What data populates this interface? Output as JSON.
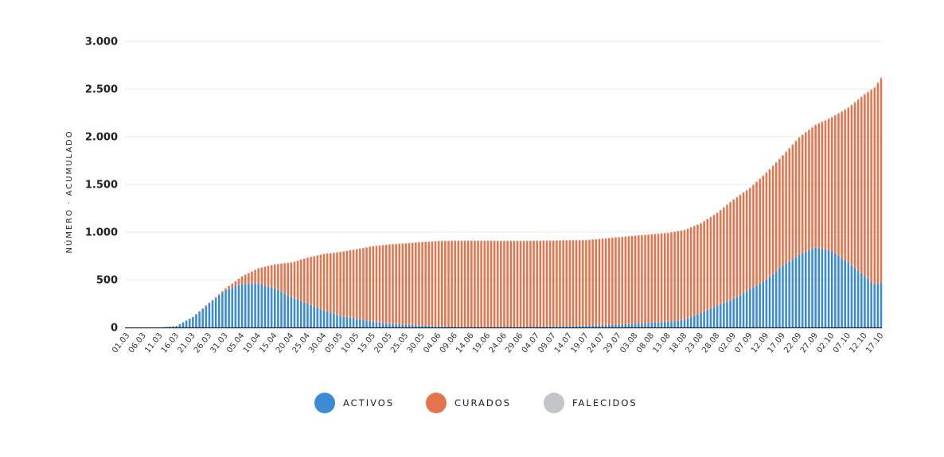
{
  "chart_data": {
    "type": "bar",
    "stacked": true,
    "ylabel": "NÚMERO · ACUMULADO",
    "ylim": [
      0,
      3000
    ],
    "yticks": [
      0,
      500,
      1000,
      1500,
      2000,
      2500,
      3000
    ],
    "ytick_labels": [
      "0",
      "500",
      "1.000",
      "1.500",
      "2.000",
      "2.500",
      "3.000"
    ],
    "grid": "horizontal",
    "x_start": "01.03",
    "x_end": "17.10",
    "xtick_labels": [
      "01.03",
      "06.03",
      "11.03",
      "16.03",
      "21.03",
      "26.03",
      "31.03",
      "05.04",
      "10.04",
      "15.04",
      "20.04",
      "25.04",
      "30.04",
      "05.05",
      "10.05",
      "15.05",
      "20.05",
      "25.05",
      "30.05",
      "04.06",
      "09.06",
      "14.06",
      "19.06",
      "24.06",
      "29.06",
      "04.07",
      "09.07",
      "14.07",
      "19.07",
      "24.07",
      "29.07",
      "03.08",
      "08.08",
      "13.08",
      "18.08",
      "23.08",
      "28.08",
      "02.09",
      "07.09",
      "12.09",
      "17.09",
      "22.09",
      "27.09",
      "02.10",
      "07.10",
      "12.10",
      "17.10"
    ],
    "legend_position": "bottom",
    "series": [
      {
        "name": "ACTIVOS",
        "color": "#3a8bd4",
        "knots": [
          [
            "01.03",
            0
          ],
          [
            "11.03",
            0
          ],
          [
            "16.03",
            15
          ],
          [
            "21.03",
            110
          ],
          [
            "26.03",
            250
          ],
          [
            "31.03",
            390
          ],
          [
            "05.04",
            455
          ],
          [
            "10.04",
            460
          ],
          [
            "15.04",
            410
          ],
          [
            "20.04",
            320
          ],
          [
            "25.04",
            250
          ],
          [
            "30.04",
            180
          ],
          [
            "05.05",
            120
          ],
          [
            "10.05",
            90
          ],
          [
            "15.05",
            60
          ],
          [
            "20.05",
            40
          ],
          [
            "25.05",
            30
          ],
          [
            "30.05",
            20
          ],
          [
            "04.06",
            12
          ],
          [
            "09.06",
            8
          ],
          [
            "14.06",
            5
          ],
          [
            "19.06",
            5
          ],
          [
            "29.06",
            6
          ],
          [
            "09.07",
            10
          ],
          [
            "19.07",
            20
          ],
          [
            "29.07",
            30
          ],
          [
            "03.08",
            40
          ],
          [
            "08.08",
            50
          ],
          [
            "13.08",
            60
          ],
          [
            "18.08",
            80
          ],
          [
            "23.08",
            150
          ],
          [
            "28.08",
            230
          ],
          [
            "02.09",
            300
          ],
          [
            "07.09",
            400
          ],
          [
            "12.09",
            500
          ],
          [
            "17.09",
            650
          ],
          [
            "22.09",
            760
          ],
          [
            "27.09",
            840
          ],
          [
            "02.10",
            800
          ],
          [
            "07.10",
            680
          ],
          [
            "12.10",
            540
          ],
          [
            "15.10",
            450
          ],
          [
            "17.10",
            470
          ]
        ]
      },
      {
        "name": "CURADOS",
        "color": "#e5734b",
        "knots": [
          [
            "01.03",
            0
          ],
          [
            "21.03",
            0
          ],
          [
            "26.03",
            10
          ],
          [
            "31.03",
            20
          ],
          [
            "05.04",
            80
          ],
          [
            "10.04",
            160
          ],
          [
            "15.04",
            250
          ],
          [
            "20.04",
            360
          ],
          [
            "25.04",
            480
          ],
          [
            "30.04",
            590
          ],
          [
            "05.05",
            670
          ],
          [
            "10.05",
            730
          ],
          [
            "15.05",
            790
          ],
          [
            "20.05",
            830
          ],
          [
            "25.05",
            850
          ],
          [
            "30.05",
            875
          ],
          [
            "04.06",
            893
          ],
          [
            "09.06",
            900
          ],
          [
            "14.06",
            903
          ],
          [
            "19.06",
            903
          ],
          [
            "29.06",
            900
          ],
          [
            "09.07",
            900
          ],
          [
            "19.07",
            895
          ],
          [
            "29.07",
            915
          ],
          [
            "03.08",
            920
          ],
          [
            "08.08",
            925
          ],
          [
            "13.08",
            930
          ],
          [
            "18.08",
            940
          ],
          [
            "23.08",
            940
          ],
          [
            "28.08",
            970
          ],
          [
            "02.09",
            1040
          ],
          [
            "07.09",
            1060
          ],
          [
            "12.09",
            1120
          ],
          [
            "17.09",
            1150
          ],
          [
            "22.09",
            1230
          ],
          [
            "27.09",
            1280
          ],
          [
            "02.10",
            1400
          ],
          [
            "07.10",
            1620
          ],
          [
            "12.10",
            1900
          ],
          [
            "15.10",
            2060
          ],
          [
            "17.10",
            2140
          ]
        ]
      },
      {
        "name": "FALECIDOS",
        "color": "#c3c5c7",
        "knots": [
          [
            "01.03",
            0
          ],
          [
            "26.03",
            0
          ],
          [
            "31.03",
            2
          ],
          [
            "05.04",
            3
          ],
          [
            "15.04",
            4
          ],
          [
            "15.07",
            4
          ],
          [
            "15.08",
            5
          ],
          [
            "15.09",
            8
          ],
          [
            "17.10",
            15
          ]
        ]
      }
    ]
  }
}
